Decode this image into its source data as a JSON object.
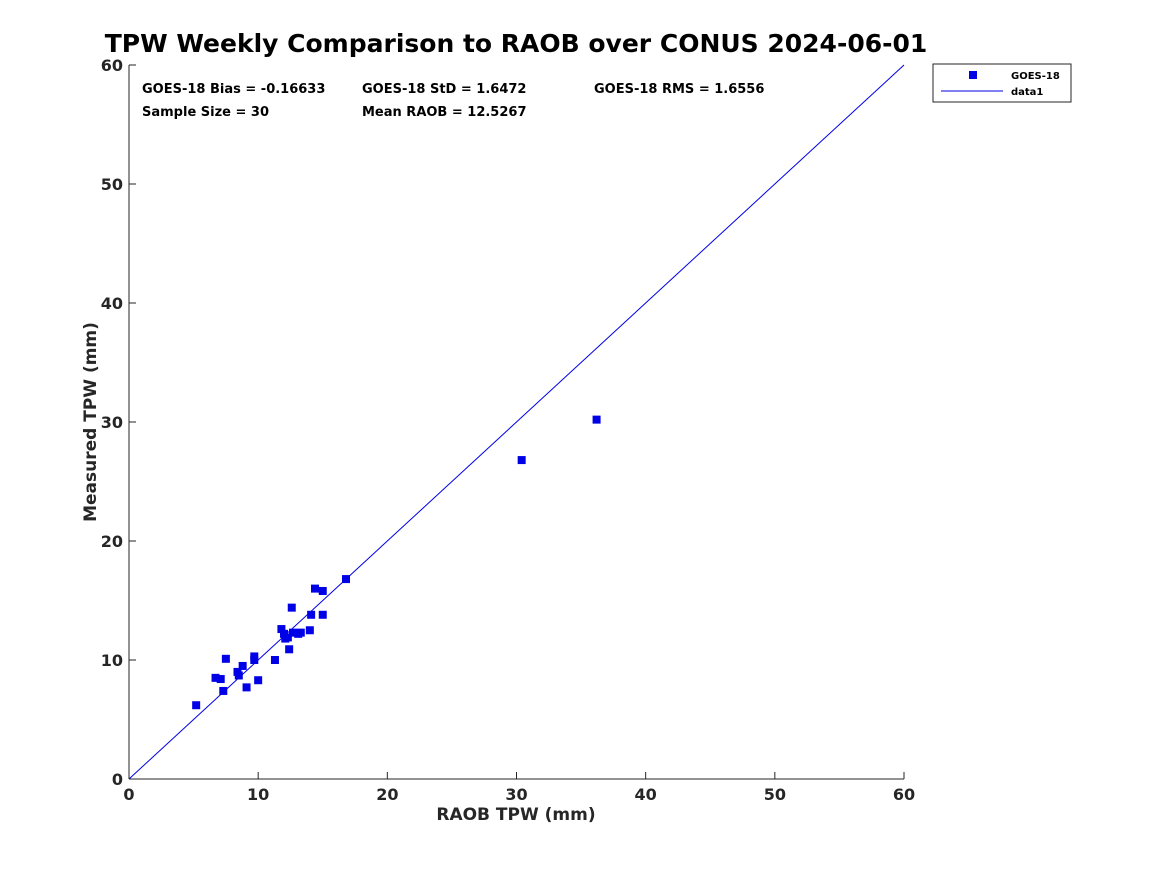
{
  "chart_data": {
    "type": "scatter",
    "title": "TPW Weekly Comparison to RAOB over CONUS 2024-06-01",
    "xlabel": "RAOB TPW (mm)",
    "ylabel": "Measured TPW (mm)",
    "xlim": [
      0,
      60
    ],
    "ylim": [
      0,
      60
    ],
    "xticks": [
      0,
      10,
      20,
      30,
      40,
      50,
      60
    ],
    "yticks": [
      0,
      10,
      20,
      30,
      40,
      50,
      60
    ],
    "xtick_labels": [
      "0",
      "10",
      "20",
      "30",
      "40",
      "50",
      "60"
    ],
    "ytick_labels": [
      "0",
      "10",
      "20",
      "30",
      "40",
      "50",
      "60"
    ],
    "grid": false,
    "legend_position": "outside-top-right",
    "series": [
      {
        "name": "GOES-18",
        "kind": "scatter",
        "marker": "square",
        "color": "#0000e6",
        "x": [
          5.2,
          6.7,
          7.1,
          7.3,
          7.5,
          8.4,
          8.5,
          8.8,
          9.1,
          9.7,
          9.7,
          10.0,
          11.3,
          11.8,
          12.0,
          12.1,
          12.3,
          12.4,
          12.6,
          12.7,
          13.1,
          13.3,
          14.0,
          14.1,
          14.4,
          15.0,
          15.0,
          16.8,
          30.4,
          36.2
        ],
        "y": [
          6.2,
          8.5,
          8.4,
          7.4,
          10.1,
          9.0,
          8.7,
          9.5,
          7.7,
          10.0,
          10.3,
          8.3,
          10.0,
          12.6,
          12.2,
          11.8,
          11.9,
          10.9,
          14.4,
          12.3,
          12.2,
          12.3,
          12.5,
          13.8,
          16.0,
          13.8,
          15.8,
          16.8,
          26.8,
          30.2
        ]
      },
      {
        "name": "data1",
        "kind": "line",
        "color": "#0000e6",
        "x": [
          0,
          60
        ],
        "y": [
          0,
          60
        ]
      }
    ],
    "annotations": {
      "bias": "GOES-18 Bias = -0.16633",
      "std": "GOES-18 StD = 1.6472",
      "rms": "GOES-18 RMS = 1.6556",
      "sample_size": "Sample Size = 30",
      "mean_raob": "Mean RAOB = 12.5267"
    }
  }
}
